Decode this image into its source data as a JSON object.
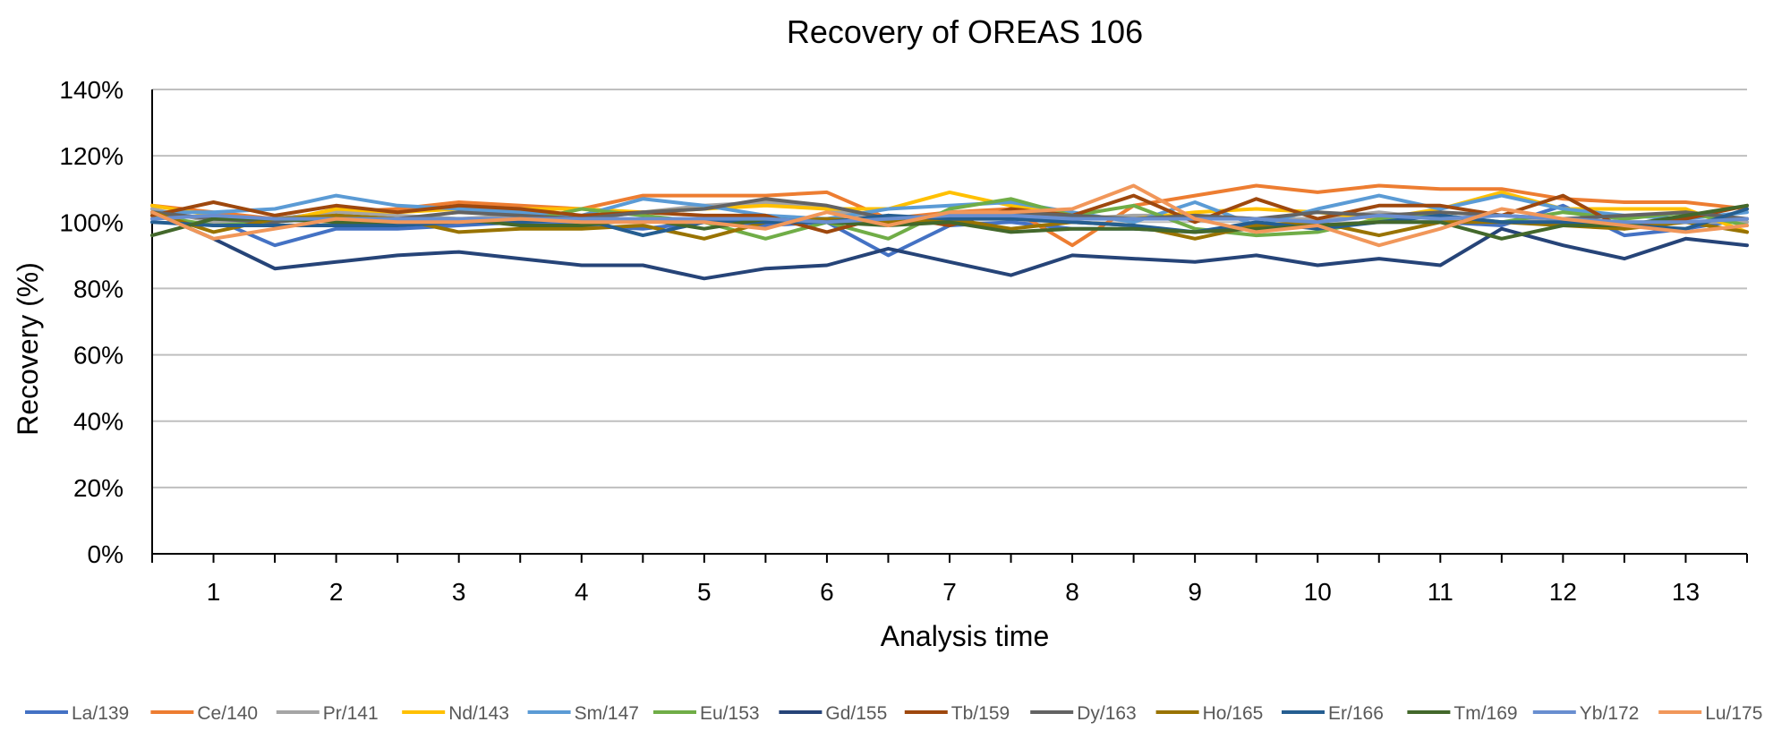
{
  "chart_data": {
    "type": "line",
    "title": "Recovery of OREAS 106",
    "xlabel": "Analysis time",
    "ylabel": "Recovery (%)",
    "ylim": [
      0,
      140
    ],
    "y_ticks": [
      0,
      20,
      40,
      60,
      80,
      100,
      120,
      140
    ],
    "y_tick_labels": [
      "0%",
      "20%",
      "40%",
      "60%",
      "80%",
      "100%",
      "120%",
      "140%"
    ],
    "x_range": [
      0.5,
      13.5
    ],
    "x_ticks": [
      1,
      2,
      3,
      4,
      5,
      6,
      7,
      8,
      9,
      10,
      11,
      12,
      13
    ],
    "x_tick_labels": [
      "1",
      "2",
      "3",
      "4",
      "5",
      "6",
      "7",
      "8",
      "9",
      "10",
      "11",
      "12",
      "13"
    ],
    "x": [
      0.5,
      1,
      1.5,
      2,
      2.5,
      3,
      3.5,
      4,
      4.5,
      5,
      5.5,
      6,
      6.5,
      7,
      7.5,
      8,
      8.5,
      9,
      9.5,
      10,
      10.5,
      11,
      11.5,
      12,
      12.5,
      13,
      13.5
    ],
    "grid": true,
    "legend_position": "bottom",
    "series": [
      {
        "name": "La/139",
        "color": "#4472C4",
        "values": [
          103,
          101,
          93,
          98,
          98,
          99,
          100,
          99,
          98,
          100,
          99,
          100,
          90,
          99,
          100,
          98,
          98,
          97,
          99,
          99,
          100,
          100,
          99,
          105,
          96,
          98,
          101
        ]
      },
      {
        "name": "Ce/140",
        "color": "#ED7D31",
        "values": [
          105,
          103,
          101,
          103,
          104,
          106,
          105,
          104,
          108,
          108,
          108,
          109,
          101,
          103,
          104,
          93,
          105,
          108,
          111,
          109,
          111,
          110,
          110,
          107,
          106,
          106,
          104
        ]
      },
      {
        "name": "Pr/141",
        "color": "#A5A5A5",
        "values": [
          104,
          100,
          101,
          103,
          102,
          101,
          102,
          101,
          103,
          105,
          106,
          104,
          100,
          101,
          102,
          101,
          102,
          102,
          101,
          101,
          103,
          101,
          100,
          101,
          100,
          100,
          100
        ]
      },
      {
        "name": "Nd/143",
        "color": "#FFC000",
        "values": [
          105,
          102,
          100,
          104,
          103,
          104,
          104,
          104,
          103,
          104,
          105,
          104,
          104,
          109,
          105,
          102,
          101,
          103,
          104,
          103,
          101,
          104,
          109,
          104,
          104,
          104,
          97
        ]
      },
      {
        "name": "Sm/147",
        "color": "#5B9BD5",
        "values": [
          103,
          103,
          104,
          108,
          105,
          104,
          103,
          102,
          107,
          105,
          102,
          101,
          104,
          105,
          106,
          103,
          100,
          106,
          99,
          104,
          108,
          104,
          108,
          104,
          102,
          101,
          103
        ]
      },
      {
        "name": "Eu/153",
        "color": "#70AD47",
        "values": [
          102,
          99,
          100,
          102,
          101,
          101,
          100,
          104,
          102,
          100,
          95,
          100,
          95,
          104,
          107,
          102,
          105,
          98,
          96,
          97,
          101,
          102,
          100,
          103,
          101,
          103,
          99
        ]
      },
      {
        "name": "Gd/155",
        "color": "#264478",
        "values": [
          103,
          95,
          86,
          88,
          90,
          91,
          89,
          87,
          87,
          83,
          86,
          87,
          92,
          88,
          84,
          90,
          89,
          88,
          90,
          87,
          89,
          87,
          98,
          93,
          89,
          95,
          93
        ]
      },
      {
        "name": "Tb/159",
        "color": "#9E480E",
        "values": [
          102,
          106,
          102,
          105,
          103,
          105,
          104,
          102,
          103,
          102,
          102,
          97,
          102,
          99,
          104,
          102,
          108,
          100,
          107,
          101,
          105,
          105,
          102,
          108,
          98,
          101,
          105
        ]
      },
      {
        "name": "Dy/163",
        "color": "#636363",
        "values": [
          103,
          101,
          100,
          102,
          101,
          103,
          102,
          101,
          103,
          104,
          107,
          105,
          101,
          102,
          103,
          102,
          101,
          102,
          101,
          103,
          102,
          103,
          102,
          101,
          102,
          103,
          101
        ]
      },
      {
        "name": "Ho/165",
        "color": "#997300",
        "values": [
          103,
          97,
          101,
          102,
          101,
          97,
          98,
          98,
          99,
          95,
          100,
          101,
          100,
          101,
          98,
          100,
          99,
          95,
          99,
          100,
          96,
          100,
          100,
          99,
          98,
          100,
          97
        ]
      },
      {
        "name": "Er/166",
        "color": "#255E91",
        "values": [
          100,
          99,
          99,
          99,
          99,
          100,
          100,
          101,
          96,
          100,
          100,
          100,
          102,
          101,
          101,
          100,
          99,
          97,
          100,
          98,
          100,
          102,
          100,
          100,
          99,
          98,
          104
        ]
      },
      {
        "name": "Tm/169",
        "color": "#43682B",
        "values": [
          96,
          101,
          101,
          100,
          100,
          101,
          99,
          99,
          101,
          98,
          101,
          100,
          99,
          100,
          97,
          98,
          98,
          97,
          98,
          99,
          100,
          100,
          95,
          99,
          99,
          102,
          105
        ]
      },
      {
        "name": "Yb/172",
        "color": "#698ED0",
        "values": [
          101,
          102,
          101,
          101,
          101,
          101,
          101,
          101,
          101,
          101,
          101,
          100,
          101,
          102,
          102,
          101,
          101,
          101,
          101,
          100,
          102,
          101,
          102,
          101,
          100,
          100,
          101
        ]
      },
      {
        "name": "Lu/175",
        "color": "#F1975A",
        "values": [
          103,
          95,
          98,
          101,
          100,
          100,
          101,
          100,
          100,
          100,
          98,
          103,
          99,
          103,
          103,
          104,
          111,
          101,
          97,
          99,
          93,
          98,
          104,
          101,
          99,
          97,
          99
        ]
      }
    ]
  }
}
